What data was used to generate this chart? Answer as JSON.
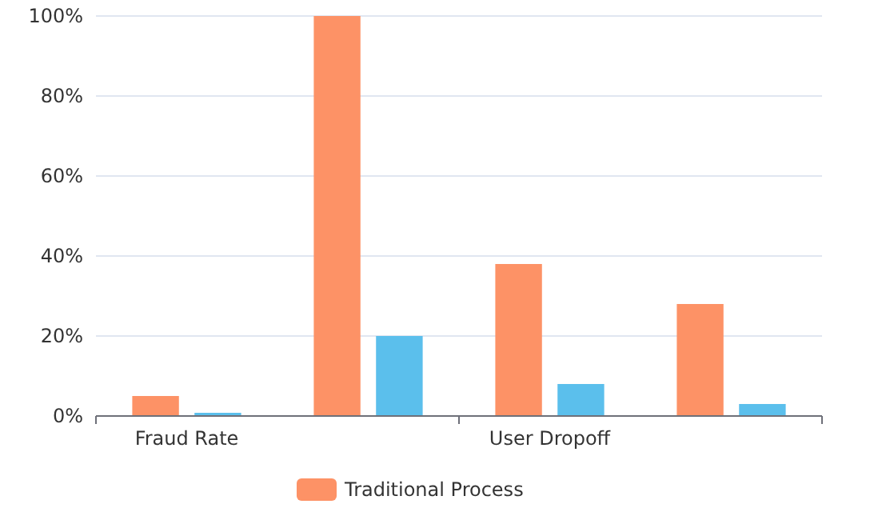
{
  "chart_data": {
    "type": "bar",
    "categories": [
      "Fraud Rate",
      null,
      "User Dropoff",
      null
    ],
    "series": [
      {
        "name": "Traditional Process",
        "color": "#fd9266",
        "values": [
          5,
          100,
          38,
          28
        ]
      },
      {
        "color": "#5bbfec",
        "values": [
          0.8,
          20,
          8,
          3
        ]
      }
    ],
    "ylim": [
      0,
      100
    ],
    "yticks": [
      {
        "value": 0,
        "label": "0%"
      },
      {
        "value": 20,
        "label": "20%"
      },
      {
        "value": 40,
        "label": "40%"
      },
      {
        "value": 60,
        "label": "60%"
      },
      {
        "value": 80,
        "label": "80%"
      },
      {
        "value": 100,
        "label": "100%"
      }
    ],
    "grid": "y",
    "legend": "bottom"
  }
}
